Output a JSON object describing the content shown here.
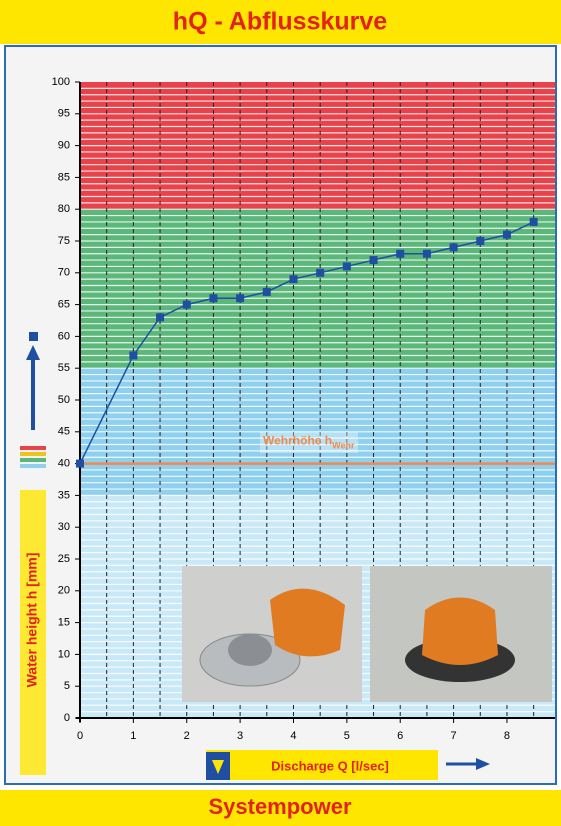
{
  "chart_data": {
    "type": "line",
    "title": "hQ - Abflusskurve",
    "footer": "Systempower",
    "x_label": "Discharge Q [l/sec]",
    "y_label": "Water height h [mm]",
    "annotation": {
      "text": "Wehrhöhe h",
      "sub": "Wehr",
      "y": 40,
      "color": "#f08a4b"
    },
    "x": [
      0,
      1,
      1.5,
      2,
      2.5,
      3,
      3.5,
      4,
      4.5,
      5,
      5.5,
      6,
      6.5,
      7,
      7.5,
      8,
      8.5
    ],
    "series": [
      {
        "color": "#1f4fa0",
        "values": [
          40,
          57,
          63,
          65,
          66,
          66,
          67,
          69,
          70,
          71,
          72,
          73,
          73,
          74,
          75,
          76,
          78
        ]
      }
    ],
    "bands": [
      {
        "from": 80,
        "to": 100,
        "color": "#e8434b"
      },
      {
        "from": 55,
        "to": 80,
        "color": "#5cb87a"
      },
      {
        "from": 35,
        "to": 55,
        "color": "#8fd0ee"
      },
      {
        "from": 0,
        "to": 35,
        "color": "#c9e9f8"
      }
    ],
    "xlim": [
      0,
      8.9
    ],
    "xticks": [
      0,
      1,
      2,
      3,
      4,
      5,
      6,
      7,
      8
    ],
    "ylim": [
      0,
      100
    ],
    "yticks": [
      0,
      5,
      10,
      15,
      20,
      25,
      30,
      35,
      40,
      45,
      50,
      55,
      60,
      65,
      70,
      75,
      80,
      85,
      90,
      95,
      100
    ]
  }
}
